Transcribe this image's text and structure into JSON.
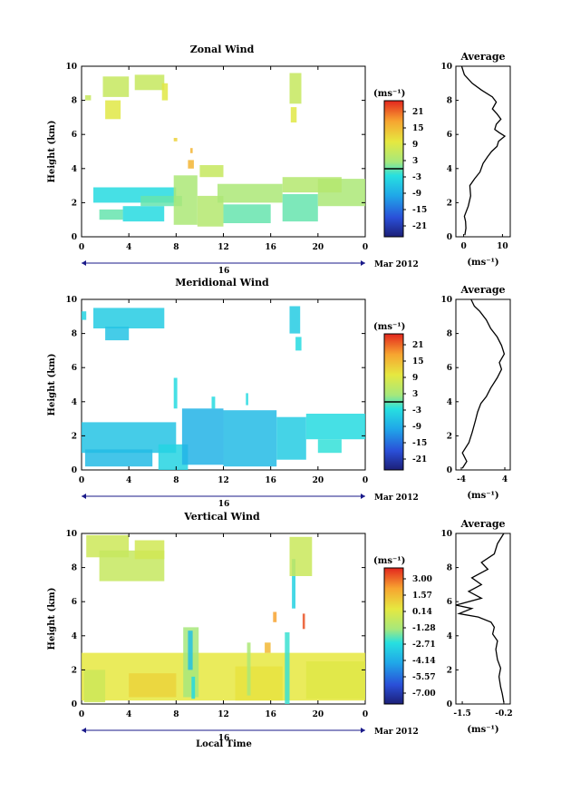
{
  "chart_data": [
    {
      "type": "heatmap",
      "title": "Zonal Wind",
      "ylabel": "Height (km)",
      "xticks": [
        "0",
        "4",
        "8",
        "12",
        "16",
        "20",
        "0"
      ],
      "yticks": [
        "0",
        "2",
        "4",
        "6",
        "8",
        "10"
      ],
      "xlim": [
        0,
        24
      ],
      "ylim": [
        0,
        10
      ],
      "date_label": "16",
      "month_label": "Mar 2012",
      "colorbar": {
        "unit": "(ms⁻¹)",
        "ticks": [
          "21",
          "15",
          "9",
          "3",
          "-3",
          "-9",
          "-15",
          "-21"
        ],
        "range": [
          -24,
          24
        ],
        "zero_line": 0
      },
      "average": {
        "title": "Average",
        "xunit": "(ms⁻¹)",
        "xticks": [
          "0",
          "10"
        ],
        "xlim": [
          -2,
          12
        ],
        "profile": [
          [
            0.3,
            0.1
          ],
          [
            0.6,
            0.5
          ],
          [
            0.5,
            0.9
          ],
          [
            0.2,
            1.2
          ],
          [
            1.2,
            1.8
          ],
          [
            1.8,
            2.4
          ],
          [
            1.6,
            3.0
          ],
          [
            2.8,
            3.4
          ],
          [
            4.2,
            3.8
          ],
          [
            5.0,
            4.3
          ],
          [
            6.2,
            4.7
          ],
          [
            7.2,
            5.0
          ],
          [
            8.6,
            5.3
          ],
          [
            9.0,
            5.6
          ],
          [
            10.6,
            5.9
          ],
          [
            9.2,
            6.1
          ],
          [
            8.0,
            6.3
          ],
          [
            8.4,
            6.6
          ],
          [
            9.6,
            6.9
          ],
          [
            8.6,
            7.2
          ],
          [
            7.4,
            7.5
          ],
          [
            8.4,
            7.9
          ],
          [
            7.4,
            8.2
          ],
          [
            4.6,
            8.6
          ],
          [
            2.2,
            9.0
          ],
          [
            0.2,
            9.5
          ],
          [
            -0.5,
            10.0
          ]
        ]
      },
      "series": [
        {
          "name": "Zonal Wind",
          "cells": [
            [
              1.5,
              1.0,
              3.5,
              1.6,
              0
            ],
            [
              3.5,
              0.9,
              7.0,
              1.8,
              -3
            ],
            [
              1.0,
              2.0,
              8.0,
              2.9,
              -3
            ],
            [
              5.0,
              1.8,
              8.5,
              2.4,
              0
            ],
            [
              7.8,
              0.7,
              9.8,
              3.6,
              3
            ],
            [
              9.8,
              0.6,
              12.0,
              2.4,
              4
            ],
            [
              12.0,
              0.8,
              16.0,
              1.9,
              0
            ],
            [
              11.5,
              2.0,
              17.0,
              3.1,
              3
            ],
            [
              17.0,
              0.9,
              20.0,
              2.5,
              0
            ],
            [
              20.0,
              1.8,
              24.0,
              3.4,
              3
            ],
            [
              17.0,
              2.6,
              22.0,
              3.5,
              4
            ],
            [
              10.0,
              3.5,
              12.0,
              4.2,
              6
            ],
            [
              9.0,
              4.0,
              9.5,
              4.5,
              15
            ],
            [
              1.8,
              8.2,
              4.0,
              9.4,
              6
            ],
            [
              2.0,
              6.9,
              3.3,
              8.0,
              9
            ],
            [
              4.5,
              8.6,
              7.0,
              9.5,
              6
            ],
            [
              6.8,
              8.0,
              7.3,
              9.0,
              9
            ],
            [
              17.6,
              7.8,
              18.6,
              9.6,
              6
            ],
            [
              17.7,
              6.7,
              18.2,
              7.6,
              9
            ],
            [
              0.3,
              8.0,
              0.8,
              8.3,
              6
            ],
            [
              7.8,
              5.6,
              8.1,
              5.8,
              12
            ],
            [
              9.2,
              4.9,
              9.4,
              5.2,
              15
            ]
          ]
        }
      ]
    },
    {
      "type": "heatmap",
      "title": "Meridional Wind",
      "ylabel": "Height (km)",
      "xticks": [
        "0",
        "4",
        "8",
        "12",
        "16",
        "20",
        "0"
      ],
      "yticks": [
        "0",
        "2",
        "4",
        "6",
        "8",
        "10"
      ],
      "xlim": [
        0,
        24
      ],
      "ylim": [
        0,
        10
      ],
      "date_label": "16",
      "month_label": "Mar 2012",
      "colorbar": {
        "unit": "(ms⁻¹)",
        "ticks": [
          "21",
          "15",
          "9",
          "3",
          "-3",
          "-9",
          "-15",
          "-21"
        ],
        "range": [
          -24,
          24
        ],
        "zero_line": 0
      },
      "average": {
        "title": "Average",
        "xunit": "(ms⁻¹)",
        "xticks": [
          "-4",
          "4"
        ],
        "xlim": [
          -5,
          5
        ],
        "profile": [
          [
            -3.8,
            0.1
          ],
          [
            -3.0,
            0.5
          ],
          [
            -3.8,
            1.0
          ],
          [
            -2.6,
            1.6
          ],
          [
            -2.0,
            2.2
          ],
          [
            -1.4,
            2.9
          ],
          [
            -1.0,
            3.4
          ],
          [
            -0.4,
            3.9
          ],
          [
            0.6,
            4.3
          ],
          [
            1.4,
            4.8
          ],
          [
            2.6,
            5.4
          ],
          [
            3.4,
            5.9
          ],
          [
            3.0,
            6.3
          ],
          [
            3.9,
            6.8
          ],
          [
            3.4,
            7.3
          ],
          [
            2.6,
            7.8
          ],
          [
            1.4,
            8.3
          ],
          [
            0.6,
            8.8
          ],
          [
            -0.6,
            9.3
          ],
          [
            -1.6,
            9.6
          ],
          [
            -2.2,
            10.0
          ]
        ]
      },
      "series": [
        {
          "name": "Meridional Wind",
          "cells": [
            [
              0.0,
              1.0,
              8.0,
              2.8,
              -6
            ],
            [
              0.3,
              0.2,
              6.0,
              1.2,
              -7
            ],
            [
              6.5,
              0.0,
              9.0,
              1.5,
              -4
            ],
            [
              8.5,
              0.3,
              12.0,
              3.6,
              -8
            ],
            [
              12.0,
              0.2,
              16.5,
              3.5,
              -7
            ],
            [
              16.5,
              0.6,
              19.0,
              3.1,
              -5
            ],
            [
              19.0,
              1.8,
              24.0,
              3.3,
              -3
            ],
            [
              20.0,
              1.0,
              22.0,
              1.8,
              -2
            ],
            [
              1.0,
              8.3,
              7.0,
              9.5,
              -5
            ],
            [
              2.0,
              7.6,
              4.0,
              8.4,
              -6
            ],
            [
              17.6,
              8.0,
              18.5,
              9.6,
              -5
            ],
            [
              18.1,
              7.0,
              18.6,
              7.8,
              -3
            ],
            [
              7.8,
              3.6,
              8.1,
              5.4,
              -3
            ],
            [
              11.0,
              3.6,
              11.3,
              4.3,
              -3
            ],
            [
              13.9,
              3.8,
              14.1,
              4.5,
              -3
            ],
            [
              0.0,
              8.8,
              0.4,
              9.3,
              -4
            ]
          ]
        }
      ]
    },
    {
      "type": "heatmap",
      "title": "Vertical Wind",
      "xlabel": "Local Time",
      "ylabel": "Height (km)",
      "xticks": [
        "0",
        "4",
        "8",
        "12",
        "16",
        "20",
        "0"
      ],
      "yticks": [
        "0",
        "2",
        "4",
        "6",
        "8",
        "10"
      ],
      "xlim": [
        0,
        24
      ],
      "ylim": [
        0,
        10
      ],
      "date_label": "16",
      "month_label": "Mar 2012",
      "colorbar": {
        "unit": "(ms⁻¹)",
        "ticks": [
          "3.00",
          "1.57",
          "0.14",
          "-1.28",
          "-2.71",
          "-4.14",
          "-5.57",
          "-7.00"
        ],
        "range": [
          -7.7,
          3.7
        ]
      },
      "average": {
        "title": "Average",
        "xunit": "(ms⁻¹)",
        "xticks": [
          "-1.5",
          "-0.2"
        ],
        "xlim": [
          -1.7,
          0.0
        ],
        "profile": [
          [
            -0.2,
            0.1
          ],
          [
            -0.25,
            0.6
          ],
          [
            -0.3,
            1.0
          ],
          [
            -0.35,
            1.6
          ],
          [
            -0.3,
            2.1
          ],
          [
            -0.4,
            2.6
          ],
          [
            -0.45,
            3.2
          ],
          [
            -0.4,
            3.7
          ],
          [
            -0.55,
            4.1
          ],
          [
            -0.5,
            4.5
          ],
          [
            -0.6,
            4.8
          ],
          [
            -1.0,
            5.1
          ],
          [
            -1.6,
            5.3
          ],
          [
            -1.2,
            5.6
          ],
          [
            -1.7,
            5.8
          ],
          [
            -0.9,
            6.2
          ],
          [
            -1.3,
            6.6
          ],
          [
            -0.9,
            7.0
          ],
          [
            -1.2,
            7.4
          ],
          [
            -0.7,
            7.9
          ],
          [
            -0.9,
            8.3
          ],
          [
            -0.5,
            8.8
          ],
          [
            -0.4,
            9.4
          ],
          [
            -0.2,
            10.0
          ]
        ]
      },
      "series": [
        {
          "name": "Vertical Wind",
          "cells": [
            [
              0.0,
              0.2,
              24.0,
              3.0,
              0.3
            ],
            [
              0.2,
              0.1,
              2.0,
              2.0,
              -0.4
            ],
            [
              4.0,
              0.4,
              8.0,
              1.8,
              0.8
            ],
            [
              13.0,
              0.2,
              17.0,
              2.2,
              0.4
            ],
            [
              19.0,
              0.3,
              24.0,
              2.5,
              0.1
            ],
            [
              8.6,
              0.4,
              9.9,
              4.5,
              -1.4
            ],
            [
              9.0,
              2.0,
              9.4,
              4.3,
              -3.5
            ],
            [
              9.3,
              0.3,
              9.6,
              1.6,
              -2.8
            ],
            [
              14.0,
              0.5,
              14.3,
              3.6,
              -1.3
            ],
            [
              17.2,
              0.0,
              17.6,
              4.2,
              -2.4
            ],
            [
              17.8,
              5.6,
              18.1,
              8.5,
              -3.0
            ],
            [
              0.4,
              8.6,
              4.0,
              9.9,
              -0.4
            ],
            [
              1.5,
              7.2,
              7.0,
              9.0,
              -0.6
            ],
            [
              4.5,
              8.5,
              7.0,
              9.6,
              -0.3
            ],
            [
              17.6,
              7.5,
              19.5,
              9.8,
              -0.5
            ],
            [
              18.7,
              4.4,
              18.9,
              5.3,
              3.1
            ],
            [
              16.2,
              4.8,
              16.5,
              5.4,
              2.0
            ],
            [
              15.5,
              3.0,
              16.0,
              3.6,
              1.5
            ]
          ]
        }
      ]
    }
  ]
}
